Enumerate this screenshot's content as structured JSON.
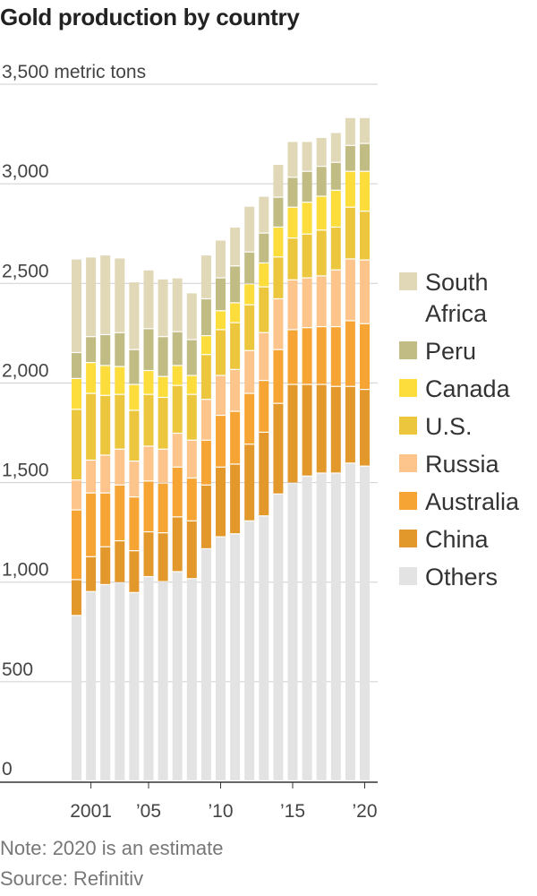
{
  "chart_data": {
    "type": "bar",
    "stacked": true,
    "title": "Gold production by country",
    "unit": "metric tons",
    "ylim": [
      0,
      3500
    ],
    "yticks": [
      0,
      500,
      1000,
      1500,
      2000,
      2500,
      3000,
      3500
    ],
    "ytick_labels": [
      "0",
      "500",
      "1,000",
      "1,500",
      "2,000",
      "2,500",
      "3,000",
      "3,500"
    ],
    "ytop_label": "3,500 metric tons",
    "grid": true,
    "legend": "right",
    "categories": [
      2000,
      2001,
      2002,
      2003,
      2004,
      2005,
      2006,
      2007,
      2008,
      2009,
      2010,
      2011,
      2012,
      2013,
      2014,
      2015,
      2016,
      2017,
      2018,
      2019,
      2020
    ],
    "xtick_labels": [
      {
        "x": 2001,
        "label": "2001"
      },
      {
        "x": 2005,
        "label": "’05"
      },
      {
        "x": 2010,
        "label": "’10"
      },
      {
        "x": 2015,
        "label": "’15"
      },
      {
        "x": 2020,
        "label": "’20"
      }
    ],
    "series": [
      {
        "name": "Others",
        "color": "#e3e3e3",
        "values": [
          830,
          950,
          985,
          995,
          945,
          1025,
          1000,
          1050,
          1015,
          1165,
          1225,
          1240,
          1305,
          1330,
          1440,
          1495,
          1530,
          1545,
          1545,
          1595,
          1580
        ]
      },
      {
        "name": "China",
        "color": "#e3982c",
        "values": [
          180,
          175,
          190,
          210,
          210,
          225,
          245,
          275,
          290,
          320,
          350,
          350,
          385,
          420,
          455,
          495,
          460,
          445,
          435,
          385,
          385
        ]
      },
      {
        "name": "Australia",
        "color": "#f6a534",
        "values": [
          350,
          320,
          270,
          280,
          270,
          255,
          250,
          250,
          215,
          225,
          260,
          265,
          255,
          260,
          270,
          275,
          285,
          290,
          300,
          330,
          330
        ]
      },
      {
        "name": "Russia",
        "color": "#fdc58b",
        "values": [
          150,
          165,
          190,
          180,
          180,
          175,
          170,
          170,
          190,
          205,
          200,
          210,
          215,
          240,
          255,
          250,
          250,
          255,
          285,
          310,
          320
        ]
      },
      {
        "name": "U.S.",
        "color": "#ecc73d",
        "values": [
          355,
          335,
          300,
          275,
          255,
          260,
          260,
          240,
          230,
          225,
          230,
          235,
          230,
          230,
          210,
          210,
          220,
          230,
          215,
          260,
          245
        ]
      },
      {
        "name": "Canada",
        "color": "#fddd3b",
        "values": [
          155,
          155,
          150,
          140,
          130,
          120,
          105,
          100,
          95,
          95,
          95,
          100,
          105,
          120,
          150,
          155,
          160,
          170,
          185,
          180,
          200
        ]
      },
      {
        "name": "Peru",
        "color": "#c1bb84",
        "values": [
          130,
          130,
          155,
          170,
          175,
          210,
          200,
          170,
          180,
          185,
          165,
          185,
          160,
          150,
          150,
          150,
          155,
          150,
          140,
          130,
          140
        ]
      },
      {
        "name": "South Africa",
        "color": "#e1d8b8",
        "values": [
          470,
          400,
          400,
          375,
          340,
          295,
          290,
          270,
          235,
          220,
          190,
          195,
          230,
          185,
          165,
          180,
          150,
          145,
          150,
          140,
          130
        ]
      }
    ],
    "note": "Note: 2020 is an estimate",
    "source": "Source: Refinitiv"
  }
}
